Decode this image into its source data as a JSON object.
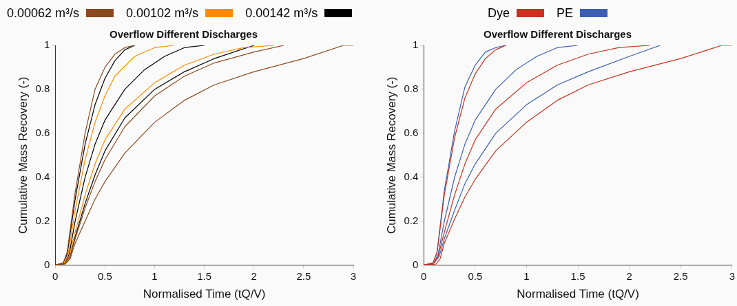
{
  "chart_data": [
    {
      "type": "line",
      "title": "Overflow Different Discharges",
      "xlabel": "Normalised Time (tQ/V)",
      "ylabel": "Cumulative Mass Recovery (-)",
      "xlim": [
        0,
        3
      ],
      "xticks": [
        0,
        0.5,
        1,
        1.5,
        2,
        2.5,
        3
      ],
      "ylim": [
        0,
        1
      ],
      "yticks": [
        0,
        0.2,
        0.4,
        0.6,
        0.8,
        1
      ],
      "legend": "top",
      "marker": "none",
      "line_style": "solid",
      "series": [
        {
          "name": "0.00062 m³/s",
          "color": "#8c4a1e",
          "x": [
            0,
            0.08,
            0.12,
            0.2,
            0.3,
            0.4,
            0.5,
            0.6,
            0.7,
            0.8
          ],
          "values": [
            0,
            0.01,
            0.06,
            0.33,
            0.6,
            0.8,
            0.9,
            0.96,
            0.99,
            1
          ]
        },
        {
          "color": "#8c4a1e",
          "x": [
            0,
            0.1,
            0.15,
            0.2,
            0.3,
            0.4,
            0.5,
            0.7,
            1.0,
            1.3,
            1.6,
            2.0,
            2.3
          ],
          "values": [
            0,
            0.01,
            0.04,
            0.12,
            0.26,
            0.38,
            0.48,
            0.63,
            0.77,
            0.86,
            0.92,
            0.97,
            1
          ]
        },
        {
          "color": "#8c4a1e",
          "x": [
            0,
            0.1,
            0.15,
            0.2,
            0.3,
            0.4,
            0.5,
            0.7,
            1.0,
            1.3,
            1.6,
            2.0,
            2.5,
            2.9,
            3
          ],
          "values": [
            0,
            0.005,
            0.03,
            0.1,
            0.2,
            0.3,
            0.38,
            0.51,
            0.65,
            0.75,
            0.82,
            0.88,
            0.94,
            1,
            1
          ]
        },
        {
          "name": "0.00102 m³/s",
          "color": "#ff8c00",
          "x": [
            0,
            0.09,
            0.13,
            0.2,
            0.3,
            0.4,
            0.5,
            0.6,
            0.8,
            1.0,
            1.2
          ],
          "values": [
            0,
            0.01,
            0.05,
            0.25,
            0.48,
            0.65,
            0.77,
            0.86,
            0.95,
            0.99,
            1
          ]
        },
        {
          "color": "#ff8c00",
          "x": [
            0,
            0.1,
            0.14,
            0.2,
            0.3,
            0.4,
            0.5,
            0.7,
            1.0,
            1.3,
            1.6,
            1.9,
            2.2
          ],
          "values": [
            0,
            0.01,
            0.04,
            0.15,
            0.32,
            0.46,
            0.57,
            0.71,
            0.83,
            0.91,
            0.96,
            0.99,
            1
          ]
        },
        {
          "name": "0.00142 m³/s",
          "color": "#000000",
          "x": [
            0,
            0.08,
            0.12,
            0.2,
            0.3,
            0.4,
            0.5,
            0.6,
            0.7,
            0.8
          ],
          "values": [
            0,
            0.01,
            0.05,
            0.3,
            0.55,
            0.73,
            0.85,
            0.93,
            0.98,
            1
          ]
        },
        {
          "color": "#000000",
          "x": [
            0,
            0.1,
            0.14,
            0.2,
            0.3,
            0.4,
            0.5,
            0.7,
            0.9,
            1.1,
            1.3,
            1.5
          ],
          "values": [
            0,
            0.01,
            0.05,
            0.2,
            0.4,
            0.55,
            0.66,
            0.8,
            0.89,
            0.95,
            0.99,
            1
          ]
        },
        {
          "color": "#000000",
          "x": [
            0,
            0.1,
            0.15,
            0.2,
            0.3,
            0.4,
            0.5,
            0.7,
            1.0,
            1.3,
            1.6,
            2.0
          ],
          "values": [
            0,
            0.01,
            0.04,
            0.13,
            0.28,
            0.41,
            0.52,
            0.67,
            0.8,
            0.88,
            0.94,
            1
          ]
        }
      ]
    },
    {
      "type": "line",
      "title": "Overflow Different Discharges",
      "xlabel": "Normalised Time (tQ/V)",
      "ylabel": "Cumulative Mass Recovery (-)",
      "xlim": [
        0,
        3
      ],
      "xticks": [
        0,
        0.5,
        1,
        1.5,
        2,
        2.5,
        3
      ],
      "ylim": [
        0,
        1
      ],
      "yticks": [
        0,
        0.2,
        0.4,
        0.6,
        0.8,
        1
      ],
      "legend": "top",
      "marker": "none",
      "line_style": "solid",
      "series": [
        {
          "name": "Dye",
          "color": "#c8321e",
          "x": [
            0,
            0.09,
            0.13,
            0.2,
            0.3,
            0.4,
            0.5,
            0.6,
            0.7,
            0.8
          ],
          "values": [
            0,
            0.01,
            0.06,
            0.32,
            0.58,
            0.76,
            0.87,
            0.94,
            0.98,
            1
          ]
        },
        {
          "color": "#c8321e",
          "x": [
            0,
            0.1,
            0.14,
            0.2,
            0.3,
            0.4,
            0.5,
            0.7,
            1.0,
            1.3,
            1.6,
            1.9,
            2.2
          ],
          "values": [
            0,
            0.01,
            0.04,
            0.15,
            0.32,
            0.46,
            0.57,
            0.71,
            0.83,
            0.91,
            0.96,
            0.99,
            1
          ]
        },
        {
          "color": "#c8321e",
          "x": [
            0,
            0.12,
            0.16,
            0.2,
            0.3,
            0.4,
            0.5,
            0.7,
            1.0,
            1.3,
            1.6,
            2.0,
            2.5,
            2.9,
            3
          ],
          "values": [
            0,
            0.005,
            0.03,
            0.1,
            0.21,
            0.31,
            0.39,
            0.52,
            0.65,
            0.75,
            0.82,
            0.88,
            0.94,
            1,
            1
          ]
        },
        {
          "name": "PE",
          "color": "#3a5fb0",
          "x": [
            0,
            0.09,
            0.13,
            0.2,
            0.3,
            0.4,
            0.5,
            0.6,
            0.7,
            0.8
          ],
          "values": [
            0,
            0.01,
            0.06,
            0.34,
            0.61,
            0.81,
            0.91,
            0.97,
            0.99,
            1
          ]
        },
        {
          "color": "#3a5fb0",
          "x": [
            0,
            0.1,
            0.14,
            0.2,
            0.3,
            0.4,
            0.5,
            0.7,
            0.9,
            1.1,
            1.3,
            1.5
          ],
          "values": [
            0,
            0.01,
            0.05,
            0.2,
            0.4,
            0.55,
            0.66,
            0.8,
            0.89,
            0.95,
            0.99,
            1
          ]
        },
        {
          "color": "#3a5fb0",
          "x": [
            0,
            0.1,
            0.15,
            0.2,
            0.3,
            0.4,
            0.5,
            0.7,
            1.0,
            1.3,
            1.6,
            2.0,
            2.3
          ],
          "values": [
            0,
            0.01,
            0.04,
            0.12,
            0.25,
            0.37,
            0.46,
            0.6,
            0.73,
            0.82,
            0.88,
            0.95,
            1
          ]
        }
      ]
    }
  ]
}
